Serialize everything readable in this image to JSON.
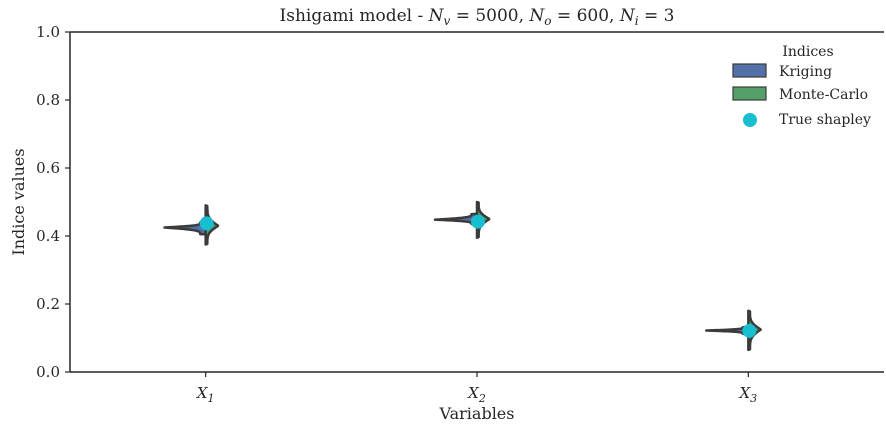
{
  "chart_data": {
    "type": "violin",
    "title_parts": {
      "prefix": "Ishigami model - ",
      "nv_symbol": "N",
      "nv_sub": "v",
      "nv_value": " = 5000, ",
      "no_symbol": "N",
      "no_sub": "o",
      "no_value": " = 600, ",
      "ni_symbol": "N",
      "ni_sub": "i",
      "ni_value": " = 3"
    },
    "xlabel": "Variables",
    "ylabel": "Indice values",
    "ylim": [
      0.0,
      1.0
    ],
    "yticks": [
      0.0,
      0.2,
      0.4,
      0.6,
      0.8,
      1.0
    ],
    "ytick_labels": [
      "0.0",
      "0.2",
      "0.4",
      "0.6",
      "0.8",
      "1.0"
    ],
    "categories": [
      {
        "symbol": "X",
        "sub": "1"
      },
      {
        "symbol": "X",
        "sub": "2"
      },
      {
        "symbol": "X",
        "sub": "3"
      }
    ],
    "legend": {
      "title": "Indices",
      "position": "top-right",
      "entries": [
        "Kriging",
        "Monte-Carlo",
        "True shapley"
      ]
    },
    "colors": {
      "kriging": "#5470a8",
      "monte_carlo": "#55a068",
      "true_shapley": "#17becf",
      "outline": "#3b3b3b"
    },
    "series": [
      {
        "name": "Kriging",
        "side": "left",
        "distributions": [
          {
            "center": 0.425,
            "min": 0.405,
            "max": 0.44,
            "peak": 0.425
          },
          {
            "center": 0.448,
            "min": 0.435,
            "max": 0.465,
            "peak": 0.448
          },
          {
            "center": 0.122,
            "min": 0.112,
            "max": 0.132,
            "peak": 0.122
          }
        ]
      },
      {
        "name": "Monte-Carlo",
        "side": "right",
        "distributions": [
          {
            "center": 0.432,
            "min": 0.375,
            "max": 0.49,
            "peak": 0.43
          },
          {
            "center": 0.448,
            "min": 0.395,
            "max": 0.5,
            "peak": 0.45
          },
          {
            "center": 0.125,
            "min": 0.065,
            "max": 0.18,
            "peak": 0.125
          }
        ]
      }
    ],
    "true_shapley": [
      0.437,
      0.442,
      0.121
    ]
  }
}
